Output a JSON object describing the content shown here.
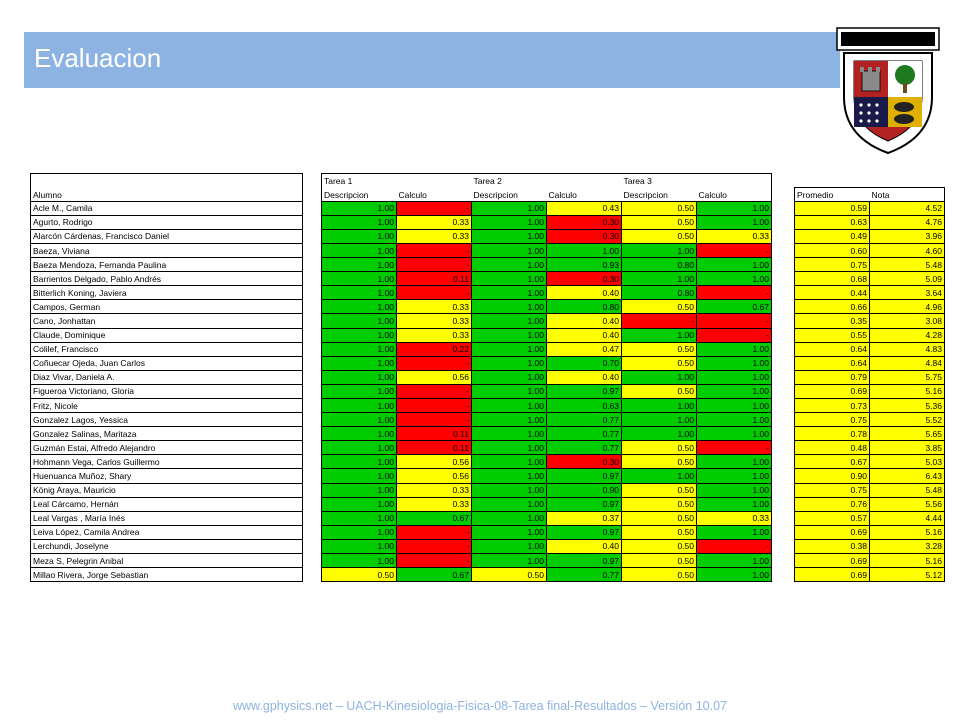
{
  "slide": {
    "title": "Evaluacion",
    "footer": "www.gphysics.net – UACH-Kinesiologia-Fisica-08-Tarea final-Resultados – Versión 10.07",
    "logo": {
      "motto": "LIBERTAS CAPITUR",
      "ring_text": "UNIVERSIDAD AUSTRAL DE CHILE"
    }
  },
  "colors": {
    "title_bar": "#8db3e2",
    "green": "#00cc00",
    "red": "#ff0000",
    "yellow": "#ffff00",
    "footer": "#8db3e2"
  },
  "table": {
    "group_headers": [
      "Tarea 1",
      "Tarea 2",
      "Tarea 3"
    ],
    "headers": {
      "alumno": "Alumno",
      "cols": [
        "Descripcion",
        "Calculo",
        "Descripcion",
        "Calculo",
        "Descripcion",
        "Calculo"
      ],
      "promedio": "Promedio",
      "nota": "Nota"
    },
    "rows": [
      {
        "name": "Acle M., Camila",
        "vals": [
          "1.00",
          "-",
          "1.00",
          "0.43",
          "0.50",
          "1.00"
        ],
        "colors": [
          "g",
          "r",
          "g",
          "y",
          "y",
          "g"
        ],
        "prom": "0.59",
        "nota": "4.52"
      },
      {
        "name": "Agurto, Rodrigo",
        "vals": [
          "1.00",
          "0.33",
          "1.00",
          "0.30",
          "0.50",
          "1.00"
        ],
        "colors": [
          "g",
          "y",
          "g",
          "r",
          "y",
          "g"
        ],
        "prom": "0.63",
        "nota": "4.76"
      },
      {
        "name": "Alarcón Cárdenas, Francisco Daniel",
        "vals": [
          "1.00",
          "0.33",
          "1.00",
          "0.30",
          "0.50",
          "0.33"
        ],
        "colors": [
          "g",
          "y",
          "g",
          "r",
          "y",
          "y"
        ],
        "prom": "0.49",
        "nota": "3.96"
      },
      {
        "name": "Baeza, Viviana",
        "vals": [
          "1.00",
          "-",
          "1.00",
          "1.00",
          "1.00",
          "-"
        ],
        "colors": [
          "g",
          "r",
          "g",
          "g",
          "g",
          "r"
        ],
        "prom": "0.60",
        "nota": "4.60"
      },
      {
        "name": "Baeza Mendoza, Fernanda Paulina",
        "vals": [
          "1.00",
          "-",
          "1.00",
          "0.93",
          "0.80",
          "1.00"
        ],
        "colors": [
          "g",
          "r",
          "g",
          "g",
          "g",
          "g"
        ],
        "prom": "0.75",
        "nota": "5.48"
      },
      {
        "name": "Barrientos Delgado, Pablo Andrés",
        "vals": [
          "1.00",
          "0.11",
          "1.00",
          "0.30",
          "1.00",
          "1.00"
        ],
        "colors": [
          "g",
          "r",
          "g",
          "r",
          "g",
          "g"
        ],
        "prom": "0.68",
        "nota": "5.09"
      },
      {
        "name": "Bitterlich Koning, Javiera",
        "vals": [
          "1.00",
          "-",
          "1.00",
          "0.40",
          "0.80",
          "-"
        ],
        "colors": [
          "g",
          "r",
          "g",
          "y",
          "g",
          "r"
        ],
        "prom": "0.44",
        "nota": "3.64"
      },
      {
        "name": "Campos, German",
        "vals": [
          "1.00",
          "0.33",
          "1.00",
          "0.80",
          "0.50",
          "0.67"
        ],
        "colors": [
          "g",
          "y",
          "g",
          "g",
          "y",
          "g"
        ],
        "prom": "0.66",
        "nota": "4.96"
      },
      {
        "name": "Cano, Jonhattan",
        "vals": [
          "1.00",
          "0.33",
          "1.00",
          "0.40",
          "-",
          "-"
        ],
        "colors": [
          "g",
          "y",
          "g",
          "y",
          "r",
          "r"
        ],
        "prom": "0.35",
        "nota": "3.08"
      },
      {
        "name": "Claude, Dominique",
        "vals": [
          "1.00",
          "0.33",
          "1.00",
          "0.40",
          "1.00",
          "-"
        ],
        "colors": [
          "g",
          "y",
          "g",
          "y",
          "g",
          "r"
        ],
        "prom": "0.55",
        "nota": "4.28"
      },
      {
        "name": "Colilef, Francisco",
        "vals": [
          "1.00",
          "0.22",
          "1.00",
          "0.47",
          "0.50",
          "1.00"
        ],
        "colors": [
          "g",
          "r",
          "g",
          "y",
          "y",
          "g"
        ],
        "prom": "0.64",
        "nota": "4.83"
      },
      {
        "name": "Coñuecar Ojeda, Juan Carlos",
        "vals": [
          "1.00",
          "-",
          "1.00",
          "0.70",
          "0.50",
          "1.00"
        ],
        "colors": [
          "g",
          "r",
          "g",
          "g",
          "y",
          "g"
        ],
        "prom": "0.64",
        "nota": "4.84"
      },
      {
        "name": "Diaz Vivar, Daniela A.",
        "vals": [
          "1.00",
          "0.56",
          "1.00",
          "0.40",
          "1.00",
          "1.00"
        ],
        "colors": [
          "g",
          "y",
          "g",
          "y",
          "g",
          "g"
        ],
        "prom": "0.79",
        "nota": "5.75"
      },
      {
        "name": "Figueroa Victoriano, Gloria",
        "vals": [
          "1.00",
          "-",
          "1.00",
          "0.97",
          "0.50",
          "1.00"
        ],
        "colors": [
          "g",
          "r",
          "g",
          "g",
          "y",
          "g"
        ],
        "prom": "0.69",
        "nota": "5.16"
      },
      {
        "name": "Fritz, Nicole",
        "vals": [
          "1.00",
          "-",
          "1.00",
          "0.63",
          "1.00",
          "1.00"
        ],
        "colors": [
          "g",
          "r",
          "g",
          "g",
          "g",
          "g"
        ],
        "prom": "0.73",
        "nota": "5.36"
      },
      {
        "name": "Gonzalez Lagos, Yessica",
        "vals": [
          "1.00",
          "-",
          "1.00",
          "0.77",
          "1.00",
          "1.00"
        ],
        "colors": [
          "g",
          "r",
          "g",
          "g",
          "g",
          "g"
        ],
        "prom": "0.75",
        "nota": "5.52"
      },
      {
        "name": "Gonzalez Salinas, Maritaza",
        "vals": [
          "1.00",
          "0.11",
          "1.00",
          "0.77",
          "1.00",
          "1.00"
        ],
        "colors": [
          "g",
          "r",
          "g",
          "g",
          "g",
          "g"
        ],
        "prom": "0.78",
        "nota": "5.65"
      },
      {
        "name": "Guzmán Estai, Alfredo Alejandro",
        "vals": [
          "1.00",
          "0.11",
          "1.00",
          "0.77",
          "0.50",
          "-"
        ],
        "colors": [
          "g",
          "r",
          "g",
          "g",
          "y",
          "r"
        ],
        "prom": "0.48",
        "nota": "3.85"
      },
      {
        "name": "Hohmann Vega, Carlos Guillermo",
        "vals": [
          "1.00",
          "0.56",
          "1.00",
          "0.30",
          "0.50",
          "1.00"
        ],
        "colors": [
          "g",
          "y",
          "g",
          "r",
          "y",
          "g"
        ],
        "prom": "0.67",
        "nota": "5.03"
      },
      {
        "name": "Huenuanca Muñoz, Shary",
        "vals": [
          "1.00",
          "0.56",
          "1.00",
          "0.97",
          "1.00",
          "1.00"
        ],
        "colors": [
          "g",
          "y",
          "g",
          "g",
          "g",
          "g"
        ],
        "prom": "0.90",
        "nota": "6.43"
      },
      {
        "name": "König Araya, Mauricio",
        "vals": [
          "1.00",
          "0.33",
          "1.00",
          "0.90",
          "0.50",
          "1.00"
        ],
        "colors": [
          "g",
          "y",
          "g",
          "g",
          "y",
          "g"
        ],
        "prom": "0.75",
        "nota": "5.48"
      },
      {
        "name": "Leal Cárcamo, Hernán",
        "vals": [
          "1.00",
          "0.33",
          "1.00",
          "0.97",
          "0.50",
          "1.00"
        ],
        "colors": [
          "g",
          "y",
          "g",
          "g",
          "y",
          "g"
        ],
        "prom": "0.76",
        "nota": "5.56"
      },
      {
        "name": "Leal Vargas , María Inés",
        "vals": [
          "1.00",
          "0.67",
          "1.00",
          "0.37",
          "0.50",
          "0.33"
        ],
        "colors": [
          "g",
          "g",
          "g",
          "y",
          "y",
          "y"
        ],
        "prom": "0.57",
        "nota": "4.44"
      },
      {
        "name": "Leiva López, Camila Andrea",
        "vals": [
          "1.00",
          "-",
          "1.00",
          "0.97",
          "0.50",
          "1.00"
        ],
        "colors": [
          "g",
          "r",
          "g",
          "g",
          "y",
          "g"
        ],
        "prom": "0.69",
        "nota": "5.16"
      },
      {
        "name": "Lerchundi, Joselyne",
        "vals": [
          "1.00",
          "-",
          "1.00",
          "0.40",
          "0.50",
          "-"
        ],
        "colors": [
          "g",
          "r",
          "g",
          "y",
          "y",
          "r"
        ],
        "prom": "0.38",
        "nota": "3.28"
      },
      {
        "name": "Meza S, Pelegrin Anibal",
        "vals": [
          "1.00",
          "-",
          "1.00",
          "0.97",
          "0.50",
          "1.00"
        ],
        "colors": [
          "g",
          "r",
          "g",
          "g",
          "y",
          "g"
        ],
        "prom": "0.69",
        "nota": "5.16"
      },
      {
        "name": "Millao Rivera, Jorge Sebastian",
        "vals": [
          "0.50",
          "0.67",
          "0.50",
          "0.77",
          "0.50",
          "1.00"
        ],
        "colors": [
          "y",
          "g",
          "y",
          "g",
          "y",
          "g"
        ],
        "prom": "0.69",
        "nota": "5.12"
      }
    ]
  }
}
